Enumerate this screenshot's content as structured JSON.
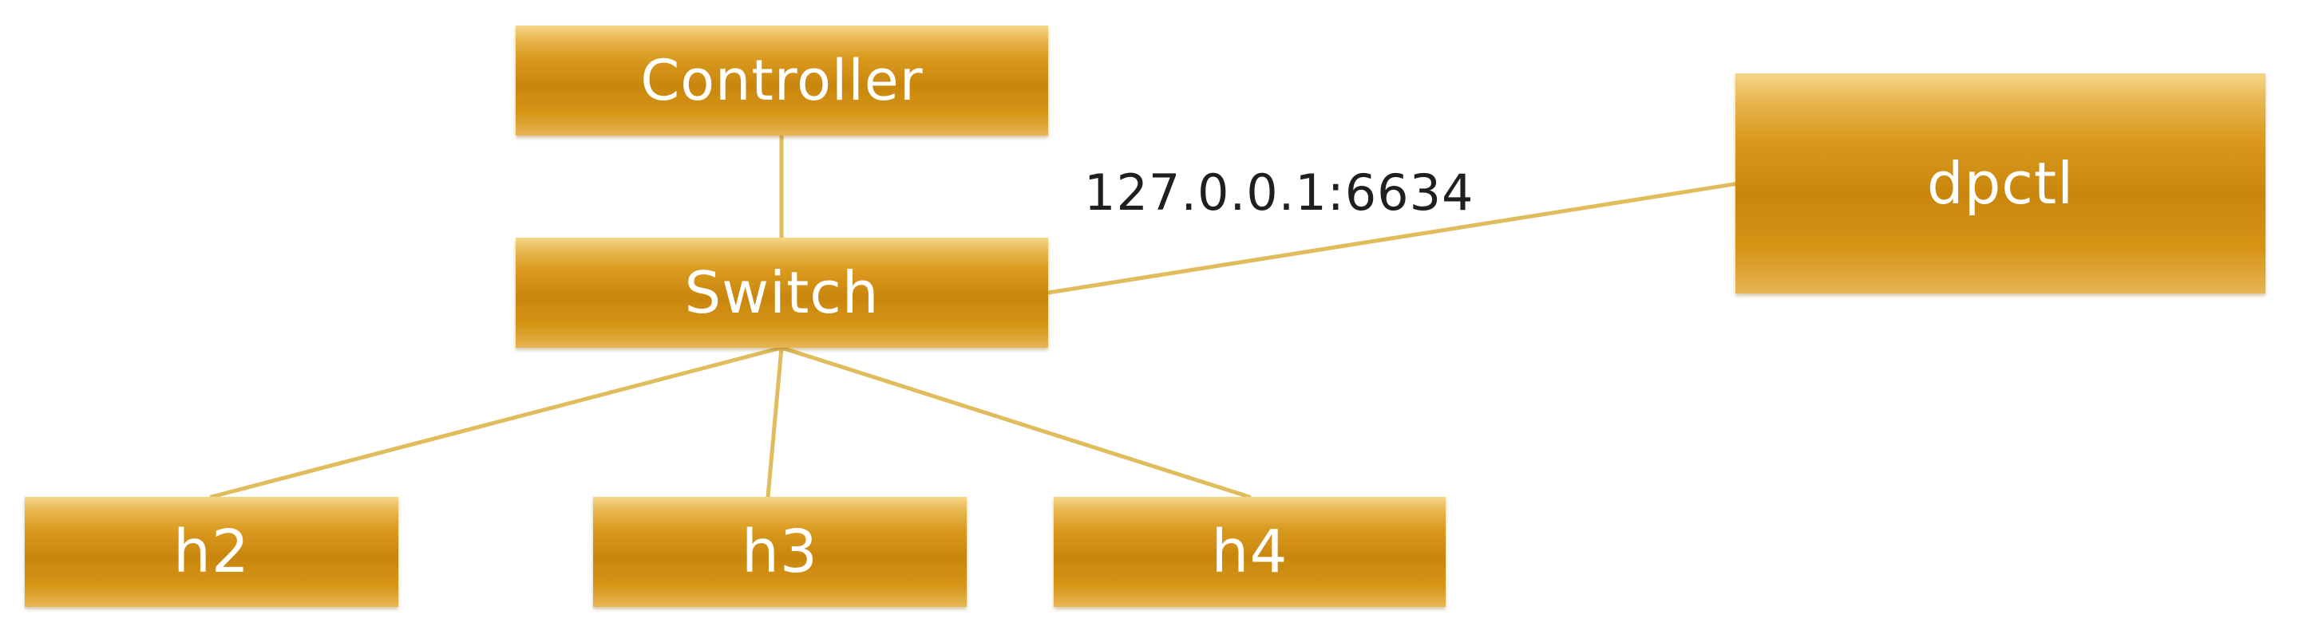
{
  "diagram": {
    "nodes": {
      "controller": "Controller",
      "switch": "Switch",
      "dpctl": "dpctl",
      "h2": "h2",
      "h3": "h3",
      "h4": "h4"
    },
    "link_label": "127.0.0.1:6634",
    "edges": [
      {
        "from": "Controller",
        "to": "Switch"
      },
      {
        "from": "Switch",
        "to": "dpctl"
      },
      {
        "from": "Switch",
        "to": "h2"
      },
      {
        "from": "Switch",
        "to": "h3"
      },
      {
        "from": "Switch",
        "to": "h4"
      }
    ]
  },
  "colors": {
    "node_fill": "#d89a1e",
    "node_text": "#ffffff",
    "link": "#e0bc5c",
    "label_text": "#1f1f1f",
    "background": "#ffffff"
  }
}
